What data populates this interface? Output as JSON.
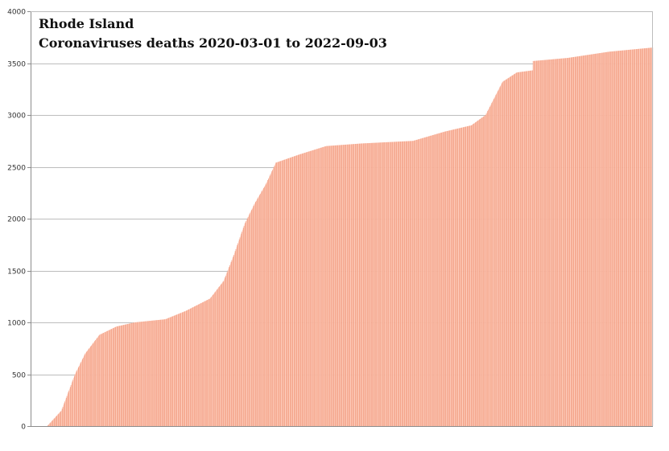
{
  "chart_data": {
    "type": "bar",
    "title": "Rhode Island",
    "subtitle": "Coronaviruses deaths 2020-03-01 to 2022-09-03",
    "xlabel": "",
    "ylabel": "",
    "ylim": [
      0,
      4000
    ],
    "yticks": [
      0,
      500,
      1000,
      1500,
      2000,
      2500,
      3000,
      3500,
      4000
    ],
    "grid": true,
    "legend": "none",
    "x_start": "2020-03-01",
    "x_end": "2022-09-03",
    "cumulative_anchors": [
      {
        "date": "2020-03-01",
        "value": 0
      },
      {
        "date": "2020-03-25",
        "value": 0
      },
      {
        "date": "2020-04-15",
        "value": 150
      },
      {
        "date": "2020-05-05",
        "value": 500
      },
      {
        "date": "2020-05-20",
        "value": 700
      },
      {
        "date": "2020-06-10",
        "value": 880
      },
      {
        "date": "2020-07-05",
        "value": 960
      },
      {
        "date": "2020-08-01",
        "value": 1000
      },
      {
        "date": "2020-09-15",
        "value": 1030
      },
      {
        "date": "2020-10-15",
        "value": 1110
      },
      {
        "date": "2020-11-20",
        "value": 1230
      },
      {
        "date": "2020-12-10",
        "value": 1400
      },
      {
        "date": "2020-12-25",
        "value": 1650
      },
      {
        "date": "2021-01-10",
        "value": 1950
      },
      {
        "date": "2021-01-25",
        "value": 2150
      },
      {
        "date": "2021-02-10",
        "value": 2330
      },
      {
        "date": "2021-02-25",
        "value": 2540
      },
      {
        "date": "2021-04-01",
        "value": 2620
      },
      {
        "date": "2021-05-10",
        "value": 2700
      },
      {
        "date": "2021-07-01",
        "value": 2725
      },
      {
        "date": "2021-09-15",
        "value": 2750
      },
      {
        "date": "2021-11-01",
        "value": 2840
      },
      {
        "date": "2021-12-10",
        "value": 2900
      },
      {
        "date": "2021-12-31",
        "value": 3000
      },
      {
        "date": "2022-01-25",
        "value": 3320
      },
      {
        "date": "2022-02-15",
        "value": 3410
      },
      {
        "date": "2022-03-10",
        "value": 3430
      },
      {
        "date": "2022-03-11",
        "value": 3520
      },
      {
        "date": "2022-05-01",
        "value": 3550
      },
      {
        "date": "2022-07-01",
        "value": 3610
      },
      {
        "date": "2022-09-03",
        "value": 3650
      }
    ],
    "colors": {
      "bar": "#f4a48a",
      "bar_stripe": "#ffd2c2",
      "grid": "#bdbdbd",
      "axis": "#8c8c8c",
      "text": "#111111",
      "tick_text": "#333333"
    }
  }
}
